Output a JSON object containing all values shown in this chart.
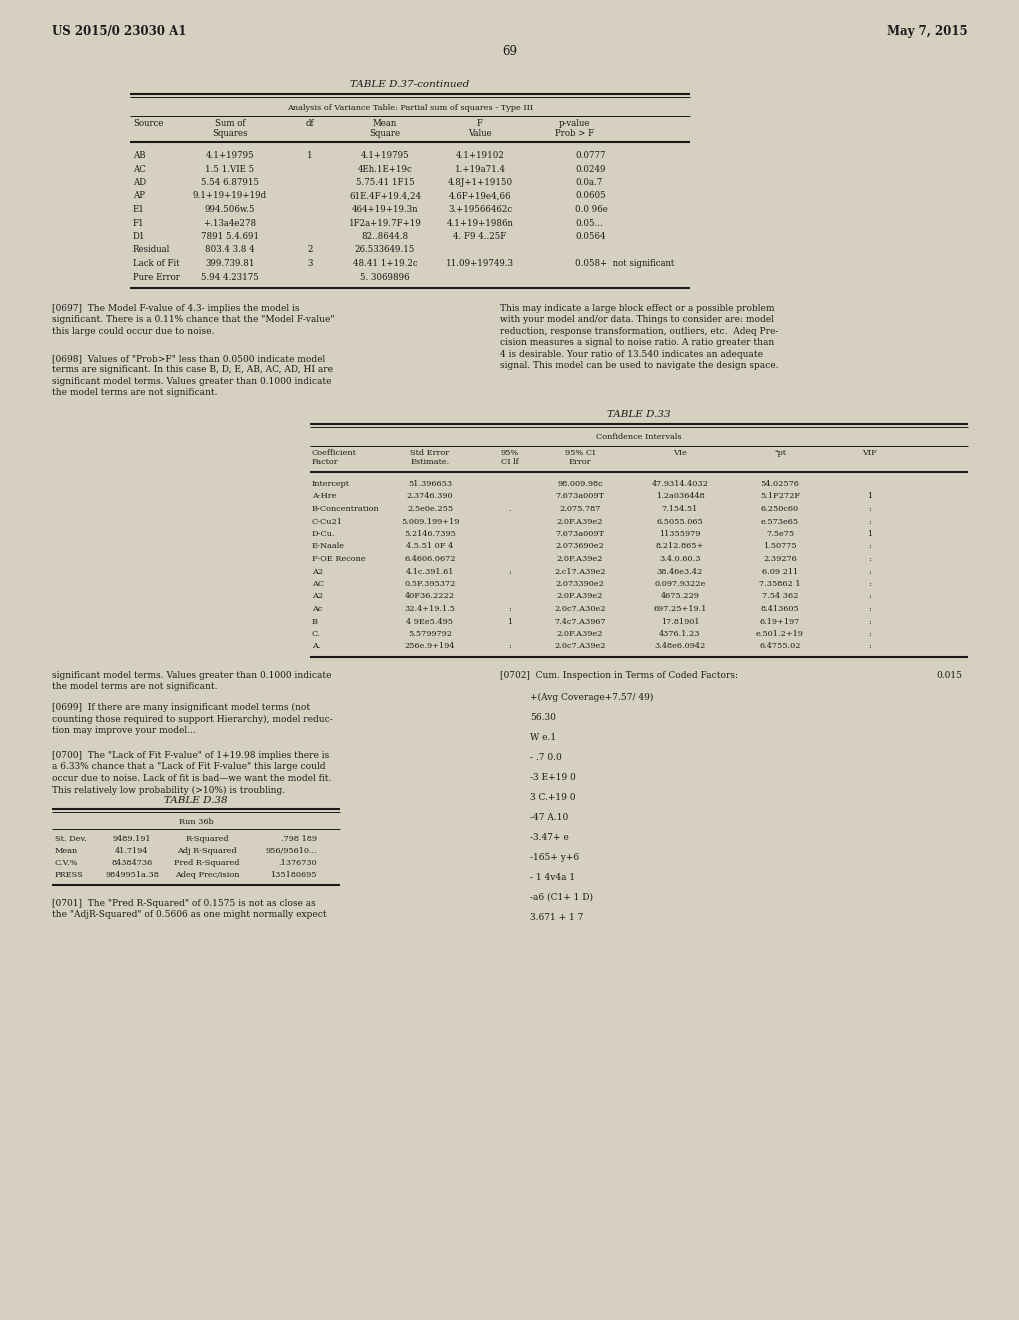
{
  "page_header_left": "US 2015/0 23030 A1",
  "page_header_right": "May 7, 2015",
  "page_number": "69",
  "bg_color": "#d6d0c0",
  "text_color": "#1a1a1a",
  "table1_title": "TABLE D.37-continued",
  "table1_subtitle": "Analysis of Variance Table: Partial sum of squares - Type III",
  "table1_col_source": "Source",
  "table1_col_sum": "Sum of\nSquares",
  "table1_col_df": "df",
  "table1_col_mean": "Mean\nSquare",
  "table1_col_f": "F\nValue",
  "table1_col_p": "p-value\nProb > F",
  "table1_rows": [
    [
      "AB",
      "4.1+19795",
      "1",
      "4.1+19795",
      "4.1+19102",
      "0.0777"
    ],
    [
      "AC",
      "1.5 1.VIE 5",
      "",
      "4Eh.1E+19c",
      "1.+19a71.4",
      "0.0249"
    ],
    [
      "AD",
      "5.54 6.87915",
      "",
      "5.75.41 1F15",
      "4.8J+1+19150",
      "0.0a.7"
    ],
    [
      "AP",
      "9.1+19+19+19d",
      "",
      "61E.4F+19.4,24",
      "4.6F+19e4,66",
      "0.0605"
    ],
    [
      "E1",
      "994.506w.5",
      "",
      "464+19+19.3n",
      "3.+19566462c",
      "0.0 96e"
    ],
    [
      "F1",
      "+.13a4e278",
      "",
      "1F2a+19.7F+19",
      "4.1+19+1986n",
      "0.05..."
    ],
    [
      "D1",
      "7891 5.4.691",
      "",
      "82..8644.8",
      "4. F9 4..25F",
      "0.0564"
    ],
    [
      "Residual",
      "803.4 3.8 4",
      "2",
      "26.533649.15",
      "",
      ""
    ],
    [
      "Lack of Fit",
      "399.739.81",
      "3",
      "48.41 1+19.2c",
      "11.09+19749.3",
      "0.058+  not significant"
    ],
    [
      "Pure Error",
      "5.94 4.23175",
      "",
      "5. 3069896",
      "",
      ""
    ]
  ],
  "para_left1": "[0697]  The Model F-value of 4.3- implies the model is\nsignificant. There is a 0.11% chance that the \"Model F-value\"\nthis large could occur due to noise.",
  "para_left2": "[0698]  Values of \"Prob>F\" less than 0.0500 indicate model\nterms are significant. In this case B, D, E, AB, AC, AD, HI are\nsignificant model terms. Values greater than 0.1000 indicate\nthe model terms are not significant.",
  "para_right1": "This may indicate a large block effect or a possible problem\nwith your model and/or data. Things to consider are: model\nreduction, response transformation, outliers, etc.  Adeq Pre-\ncision measures a signal to noise ratio. A ratio greater than\n4 is desirable. Your ratio of 13.540 indicates an adequate\nsignal. This model can be used to navigate the design space.",
  "table2_title": "TABLE D.33",
  "table2_subtitle": "Confidence Intervals",
  "table2_rows": [
    [
      "Intercept",
      "51.396653",
      "",
      "98.009.98c",
      "47.9314.4032",
      "54.02576",
      ""
    ],
    [
      "A-Hre",
      "2.3746.390",
      "",
      "7.673a009T",
      "1.2a036448",
      "5.1F272F",
      "1"
    ],
    [
      "B-Concentration",
      "2.5e0e.255",
      ".",
      "2.075.787",
      "7.154.51",
      "6.250c60",
      ":"
    ],
    [
      "C-Cu21",
      "5.009.199+19",
      "",
      "2.0F.A39e2",
      "6.5055.065",
      "e.573e65",
      ":"
    ],
    [
      "D-Cu.",
      "5.2146.7395",
      "",
      "7.673a009T",
      "11355979",
      "7.5e75",
      "1"
    ],
    [
      "E-Naale",
      "4.5.51 0F 4",
      "",
      "2.073690e2",
      "8.212.865+",
      "1.50775",
      ":"
    ],
    [
      "F-OE Recone",
      "6.4606.0672",
      "",
      "2.0F.A39e2",
      "3.4.0.60.3",
      "2.39276",
      ":"
    ],
    [
      "A2",
      "4.1c.391.61",
      ":",
      "2.c17.A39e2",
      "38.46e3.42",
      "6.09 211",
      ":"
    ],
    [
      "AC",
      "0.5F.395372",
      "",
      "2.073390e2",
      "0.097.9322e",
      "7.35862 1",
      ":"
    ],
    [
      "A2",
      "40F36.2222",
      "",
      "2.0F.A39e2",
      "4675.229",
      "7.54 362",
      ":"
    ],
    [
      "Ac",
      "32.4+19.1.5",
      ":",
      "2.0c7.A30e2",
      "697.25+19.1",
      "8.413605",
      ":"
    ],
    [
      "B",
      "4 9Ee5.495",
      "1",
      "7.4c7.A3967",
      "17.81901",
      "6.19+197",
      ":"
    ],
    [
      "C.",
      "5.5799792",
      "",
      "2.0F.A39e2",
      "4376.1.23",
      "e.501.2+19",
      ":"
    ],
    [
      "A.",
      "256e.9+194",
      ":",
      "2.0c7.A39e2",
      "3.48e6.0942",
      "6.4755.02",
      ":"
    ]
  ],
  "para_low_left1": "significant model terms. Values greater than 0.1000 indicate\nthe model terms are not significant.",
  "para_low_left2": "[0699]  If there are many insignificant model terms (not\ncounting those required to support Hierarchy), model reduc-\ntion may improve your model...",
  "para_low_left3": "[0700]  The \"Lack of Fit F-value\" of 1+19.98 implies there is\na 6.33% chance that a \"Lack of Fit F-value\" this large could\noccur due to noise. Lack of fit is bad—we want the model fit.\nThis relatively low probability (>10%) is troubling.",
  "table3_title": "TABLE D.38",
  "table3_subtitle": "Run 36b",
  "table3_row0": [
    "St. Dev.",
    "9489.191",
    "R-Squared",
    ".798 189"
  ],
  "table3_row1": [
    "Mean",
    "41.7194",
    "Adj R-Squared",
    "956/95610..."
  ],
  "table3_row2": [
    "C.V.%",
    "84384736",
    "Pred R-Squared",
    ".1376730"
  ],
  "table3_row3": [
    "PRESS",
    "9849951a.38",
    "Adeq Prec/ision",
    "135180695"
  ],
  "para0701": "[0701]  The \"Pred R-Squared\" of 0.1575 is not as close as\nthe \"AdjR-Squared\" of 0.5606 as one might normally expect",
  "para0702_title": "[0702]  Cum. Inspection in Terms of Coded Factors:",
  "para0702_right_val": "0.015",
  "para0702_lines": [
    "+(Avg Coverage+7.57/ 49)",
    "56.30",
    "W e.1",
    "- .7 0.0",
    "-3 E+19 0",
    "3 C.+19 0",
    "-47 A.10",
    "-3.47+ e",
    "-165+ y+6",
    "- 1 4v4a 1",
    "-a6 (C1+ 1 D)",
    "3.671 + 1 7"
  ]
}
